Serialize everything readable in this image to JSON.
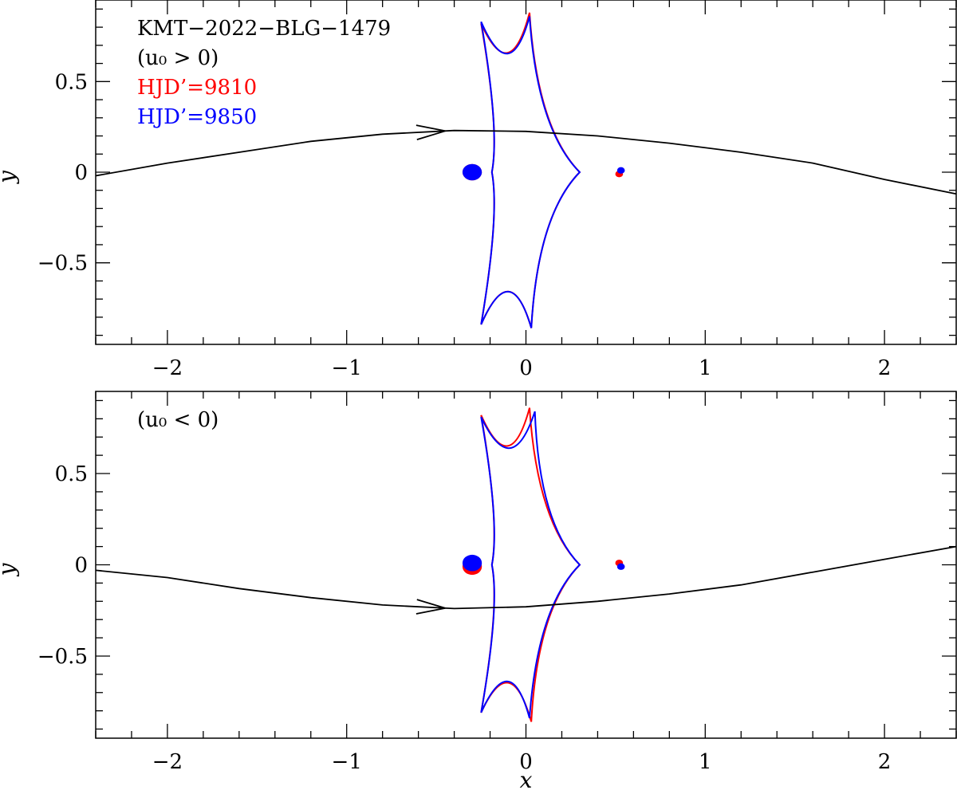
{
  "chart_data": [
    {
      "type": "scatter",
      "panel": "top",
      "xlim": [
        -2.4,
        2.4
      ],
      "ylim": [
        -0.95,
        0.95
      ],
      "xlabel": "",
      "ylabel": "y",
      "xticks": [
        -2,
        -1,
        0,
        1,
        2
      ],
      "xtick_labels": [
        "−2",
        "−1",
        "0",
        "1",
        "2"
      ],
      "yticks": [
        -0.5,
        0,
        0.5
      ],
      "ytick_labels": [
        "−0.5",
        "0",
        "0.5"
      ],
      "annotations": [
        {
          "text": "KMT−2022−BLG−1479",
          "color": "#000000"
        },
        {
          "text": "(u₀ > 0)",
          "color": "#000000"
        },
        {
          "text": "HJD’=9810",
          "color": "#ff0000"
        },
        {
          "text": "HJD’=9850",
          "color": "#0000ff"
        }
      ],
      "series": [
        {
          "color": "#ff0000",
          "caustic_cusps": [
            [
              -0.19,
              0.0
            ],
            [
              -0.25,
              0.82
            ],
            [
              0.02,
              0.88
            ],
            [
              0.3,
              0.0
            ],
            [
              0.03,
              -0.86
            ],
            [
              -0.25,
              -0.84
            ]
          ],
          "lenses": [
            {
              "x": -0.3,
              "y": 0.0,
              "r": 0.075
            },
            {
              "x": 0.52,
              "y": -0.01,
              "r": 0.03
            }
          ]
        },
        {
          "color": "#0000ff",
          "caustic_cusps": [
            [
              -0.19,
              0.0
            ],
            [
              -0.25,
              0.83
            ],
            [
              0.02,
              0.86
            ],
            [
              0.3,
              0.0
            ],
            [
              0.03,
              -0.86
            ],
            [
              -0.25,
              -0.84
            ]
          ],
          "lenses": [
            {
              "x": -0.3,
              "y": 0.0,
              "r": 0.075
            },
            {
              "x": 0.53,
              "y": 0.01,
              "r": 0.03
            }
          ]
        }
      ],
      "trajectory": {
        "x": [
          -2.4,
          -2.0,
          -1.6,
          -1.2,
          -0.8,
          -0.4,
          0.0,
          0.4,
          0.8,
          1.2,
          1.6,
          2.0,
          2.4
        ],
        "y": [
          -0.02,
          0.05,
          0.11,
          0.17,
          0.21,
          0.23,
          0.225,
          0.2,
          0.16,
          0.11,
          0.05,
          -0.04,
          -0.12
        ],
        "arrow_x": -0.45
      }
    },
    {
      "type": "scatter",
      "panel": "bottom",
      "xlim": [
        -2.4,
        2.4
      ],
      "ylim": [
        -0.95,
        0.95
      ],
      "xlabel": "x",
      "ylabel": "y",
      "xticks": [
        -2,
        -1,
        0,
        1,
        2
      ],
      "xtick_labels": [
        "−2",
        "−1",
        "0",
        "1",
        "2"
      ],
      "yticks": [
        -0.5,
        0,
        0.5
      ],
      "ytick_labels": [
        "−0.5",
        "0",
        "0.5"
      ],
      "annotations": [
        {
          "text": "(u₀ < 0)",
          "color": "#000000"
        }
      ],
      "series": [
        {
          "color": "#ff0000",
          "caustic_cusps": [
            [
              -0.19,
              0.0
            ],
            [
              -0.25,
              0.82
            ],
            [
              0.02,
              0.86
            ],
            [
              0.3,
              0.0
            ],
            [
              0.03,
              -0.86
            ],
            [
              -0.25,
              -0.81
            ]
          ],
          "lenses": [
            {
              "x": -0.3,
              "y": -0.01,
              "r": 0.075
            },
            {
              "x": 0.52,
              "y": 0.01,
              "r": 0.03
            }
          ]
        },
        {
          "color": "#0000ff",
          "caustic_cusps": [
            [
              -0.19,
              0.0
            ],
            [
              -0.25,
              0.81
            ],
            [
              0.05,
              0.84
            ],
            [
              0.3,
              0.0
            ],
            [
              0.02,
              -0.84
            ],
            [
              -0.25,
              -0.81
            ]
          ],
          "lenses": [
            {
              "x": -0.3,
              "y": 0.01,
              "r": 0.075
            },
            {
              "x": 0.53,
              "y": -0.01,
              "r": 0.03
            }
          ]
        }
      ],
      "trajectory": {
        "x": [
          -2.4,
          -2.0,
          -1.6,
          -1.2,
          -0.8,
          -0.4,
          0.0,
          0.4,
          0.8,
          1.2,
          1.6,
          2.0,
          2.4
        ],
        "y": [
          -0.03,
          -0.07,
          -0.13,
          -0.18,
          -0.22,
          -0.24,
          -0.23,
          -0.2,
          -0.16,
          -0.11,
          -0.04,
          0.03,
          0.1
        ],
        "arrow_x": -0.45
      }
    }
  ]
}
